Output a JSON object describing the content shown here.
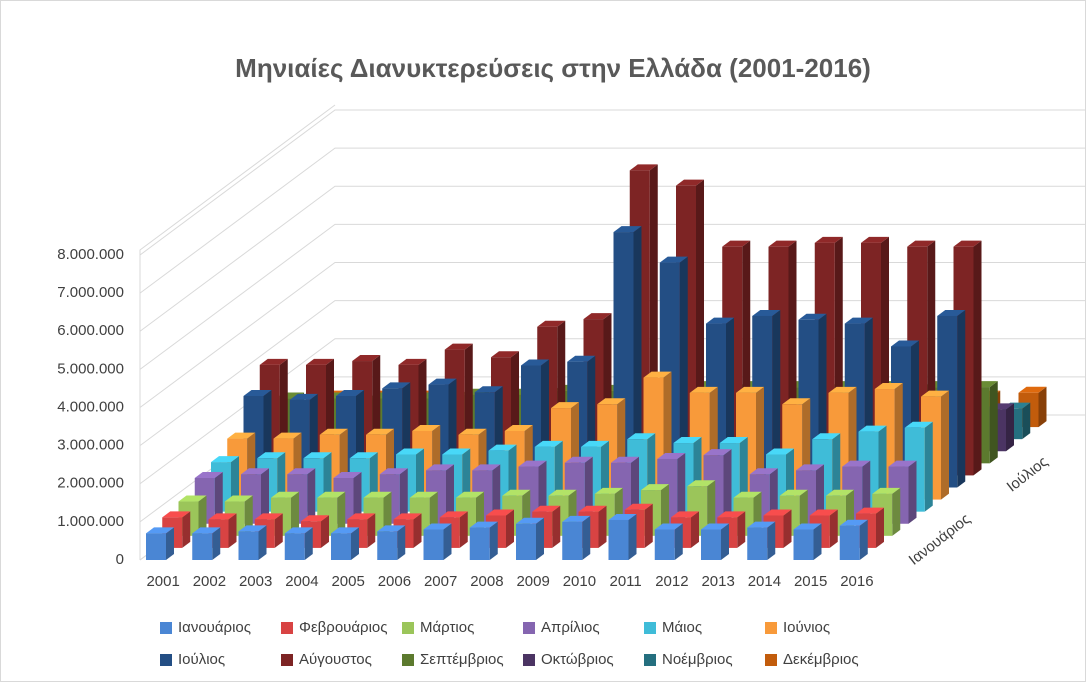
{
  "chart_data": {
    "type": "bar3d",
    "title": "Μηνιαίες Διανυκτερεύσεις στην Ελλάδα (2001-2016)",
    "categories": [
      "2001",
      "2002",
      "2003",
      "2004",
      "2005",
      "2006",
      "2007",
      "2008",
      "2009",
      "2010",
      "2011",
      "2012",
      "2013",
      "2014",
      "2015",
      "2016"
    ],
    "ylim": [
      0,
      8000000
    ],
    "yticks": [
      0,
      {
        "value": 1000000,
        "label": "1.000.000"
      },
      {
        "value": 2000000,
        "label": "2.000.000"
      },
      {
        "value": 3000000,
        "label": "3.000.000"
      },
      {
        "value": 4000000,
        "label": "4.000.000"
      },
      {
        "value": 5000000,
        "label": "5.000.000"
      },
      {
        "value": 6000000,
        "label": "6.000.000"
      },
      {
        "value": 7000000,
        "label": "7.000.000"
      },
      {
        "value": 8000000,
        "label": "8.000.000"
      }
    ],
    "grid": true,
    "series": [
      {
        "name": "Ιανουάριος",
        "color": "#4a86d4",
        "values": [
          700000,
          700000,
          750000,
          700000,
          700000,
          750000,
          800000,
          850000,
          950000,
          1000000,
          1050000,
          800000,
          800000,
          850000,
          800000,
          900000
        ]
      },
      {
        "name": "Φεβρουάριος",
        "color": "#d84343",
        "values": [
          800000,
          750000,
          750000,
          700000,
          750000,
          750000,
          800000,
          850000,
          950000,
          950000,
          1000000,
          800000,
          800000,
          850000,
          850000,
          900000
        ]
      },
      {
        "name": "Μάρτιος",
        "color": "#9bc55a",
        "values": [
          900000,
          900000,
          1000000,
          1000000,
          1000000,
          1000000,
          1000000,
          1050000,
          1050000,
          1100000,
          1200000,
          1300000,
          1000000,
          1050000,
          1050000,
          1100000
        ]
      },
      {
        "name": "Απρίλιος",
        "color": "#8565b0",
        "values": [
          1200000,
          1300000,
          1300000,
          1200000,
          1300000,
          1400000,
          1400000,
          1500000,
          1600000,
          1600000,
          1700000,
          1800000,
          1300000,
          1400000,
          1500000,
          1500000
        ]
      },
      {
        "name": "Μάιος",
        "color": "#3fbcd8",
        "values": [
          1300000,
          1400000,
          1400000,
          1400000,
          1500000,
          1500000,
          1600000,
          1700000,
          1700000,
          1900000,
          1800000,
          1800000,
          1500000,
          1900000,
          2100000,
          2200000
        ]
      },
      {
        "name": "Ιούνιος",
        "color": "#f89a3a",
        "values": [
          1600000,
          1600000,
          1700000,
          1700000,
          1800000,
          1700000,
          1800000,
          2400000,
          2500000,
          3200000,
          2800000,
          2800000,
          2500000,
          2800000,
          2900000,
          2700000
        ]
      },
      {
        "name": "Ιούλιος",
        "color": "#234e84",
        "values": [
          2400000,
          2300000,
          2400000,
          2600000,
          2700000,
          2500000,
          3200000,
          3300000,
          6700000,
          5900000,
          4300000,
          4500000,
          4400000,
          4300000,
          3700000,
          4500000
        ]
      },
      {
        "name": "Αύγουστος",
        "color": "#7d2424",
        "values": [
          2900000,
          2900000,
          3000000,
          2900000,
          3300000,
          3100000,
          3900000,
          4100000,
          8000000,
          7600000,
          6000000,
          6000000,
          6100000,
          6100000,
          6000000,
          6000000
        ]
      },
      {
        "name": "Σεπτέμβριος",
        "color": "#5c7a2e",
        "values": [
          1700000,
          1700000,
          1700000,
          1700000,
          1800000,
          1800000,
          1900000,
          1900000,
          2000000,
          2000000,
          2000000,
          2000000,
          2000000,
          2000000,
          2000000,
          2000000
        ]
      },
      {
        "name": "Οκτώβριος",
        "color": "#4b3463",
        "values": [
          1000000,
          1000000,
          1000000,
          1000000,
          1000000,
          1000000,
          1000000,
          1000000,
          1100000,
          1100000,
          1100000,
          1100000,
          1100000,
          1100000,
          1100000,
          1100000
        ]
      },
      {
        "name": "Νοέμβριος",
        "color": "#256f7f",
        "values": [
          600000,
          600000,
          600000,
          600000,
          600000,
          600000,
          600000,
          600000,
          700000,
          700000,
          700000,
          700000,
          700000,
          700000,
          700000,
          800000
        ]
      },
      {
        "name": "Δεκέμβριος",
        "color": "#c25c0c",
        "values": [
          800000,
          800000,
          800000,
          800000,
          800000,
          800000,
          800000,
          800000,
          800000,
          800000,
          800000,
          800000,
          800000,
          800000,
          800000,
          900000
        ]
      }
    ]
  }
}
